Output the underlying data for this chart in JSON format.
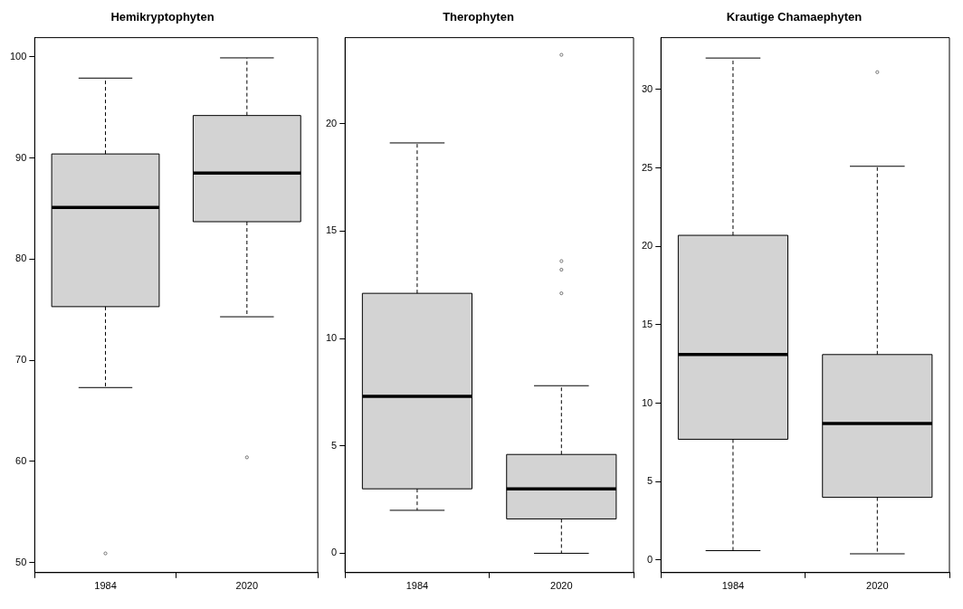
{
  "chart_data": [
    {
      "type": "box",
      "title": "Hemikryptophyten",
      "categories": [
        "1984",
        "2020"
      ],
      "ylim": [
        49,
        101.9
      ],
      "yticks": [
        50,
        60,
        70,
        80,
        90,
        100
      ],
      "grid": false,
      "legend": false,
      "series": [
        {
          "color": "#d3d3d3",
          "boxes": [
            {
              "low": 67.3,
              "q1": 75.3,
              "median": 85.1,
              "q3": 90.4,
              "high": 97.9,
              "outliers": [
                50.9
              ]
            },
            {
              "low": 74.3,
              "q1": 83.7,
              "median": 88.5,
              "q3": 94.2,
              "high": 99.9,
              "outliers": [
                60.4
              ]
            }
          ]
        }
      ]
    },
    {
      "type": "box",
      "title": "Therophyten",
      "categories": [
        "1984",
        "2020"
      ],
      "ylim": [
        -0.9,
        24
      ],
      "yticks": [
        0,
        5,
        10,
        15,
        20
      ],
      "grid": false,
      "legend": false,
      "series": [
        {
          "color": "#d3d3d3",
          "boxes": [
            {
              "low": 2.0,
              "q1": 3.0,
              "median": 7.3,
              "q3": 12.1,
              "high": 19.1
            },
            {
              "low": 0,
              "q1": 1.6,
              "median": 3.0,
              "q3": 4.6,
              "high": 7.8,
              "outliers": [
                23.2,
                13.6,
                13.2,
                12.1
              ]
            }
          ]
        }
      ]
    },
    {
      "type": "box",
      "title": "Krautige Chamaephyten",
      "categories": [
        "1984",
        "2020"
      ],
      "ylim": [
        -0.8,
        33.3
      ],
      "yticks": [
        0,
        5,
        10,
        15,
        20,
        25,
        30
      ],
      "grid": false,
      "legend": false,
      "series": [
        {
          "color": "#d3d3d3",
          "boxes": [
            {
              "low": 0.6,
              "q1": 7.7,
              "median": 13.1,
              "q3": 20.7,
              "high": 32.0
            },
            {
              "low": 0.4,
              "q1": 4.0,
              "median": 8.7,
              "q3": 13.1,
              "high": 25.1,
              "outliers": [
                31.1
              ]
            }
          ]
        }
      ]
    }
  ]
}
